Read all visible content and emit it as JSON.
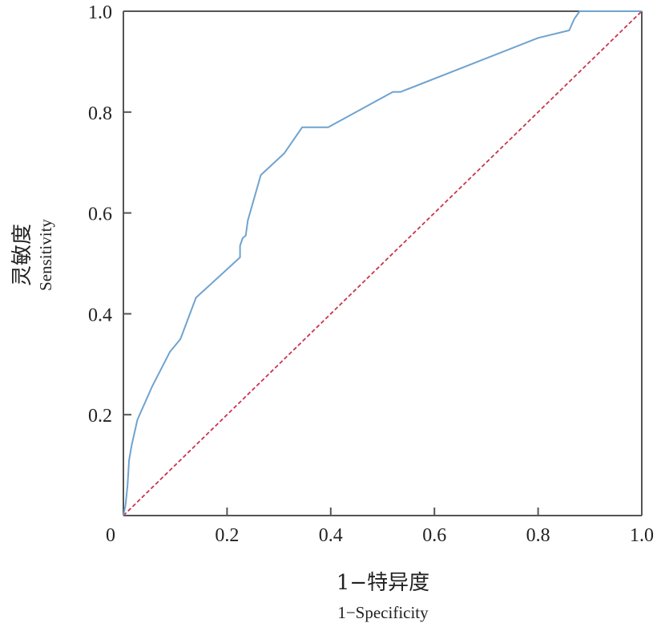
{
  "chart_data": {
    "type": "line",
    "title": "",
    "xlabel_cn": "1−特异度",
    "xlabel_en": "1−Specificity",
    "ylabel_cn": "灵敏度",
    "ylabel_en": "Sensitivity",
    "xlim": [
      0,
      1
    ],
    "ylim": [
      0,
      1
    ],
    "x_ticks": [
      0.2,
      0.4,
      0.6,
      0.8,
      1.0
    ],
    "x_tick_labels": [
      "0.2",
      "0.4",
      "0.6",
      "0.8",
      "1.0"
    ],
    "y_ticks": [
      0.2,
      0.4,
      0.6,
      0.8,
      1.0
    ],
    "y_tick_labels": [
      "0.2",
      "0.4",
      "0.6",
      "0.8",
      "1.0"
    ],
    "origin_label": "0",
    "grid": false,
    "series": [
      {
        "role": "roc-curve",
        "color": "#6fa3cf",
        "style": "solid",
        "x": [
          0,
          0.004,
          0.008,
          0.011,
          0.016,
          0.027,
          0.055,
          0.09,
          0.11,
          0.14,
          0.225,
          0.225,
          0.23,
          0.236,
          0.24,
          0.265,
          0.31,
          0.345,
          0.395,
          0.52,
          0.535,
          0.8,
          0.86,
          0.87,
          0.88,
          1.0
        ],
        "y": [
          0,
          0.02,
          0.06,
          0.11,
          0.14,
          0.19,
          0.255,
          0.325,
          0.35,
          0.432,
          0.512,
          0.535,
          0.55,
          0.555,
          0.585,
          0.675,
          0.718,
          0.77,
          0.77,
          0.84,
          0.84,
          0.947,
          0.962,
          0.985,
          1.0,
          1.0
        ]
      },
      {
        "role": "reference-diagonal",
        "color": "#c8354f",
        "style": "dashed",
        "x": [
          0,
          1
        ],
        "y": [
          0,
          1
        ]
      }
    ]
  }
}
